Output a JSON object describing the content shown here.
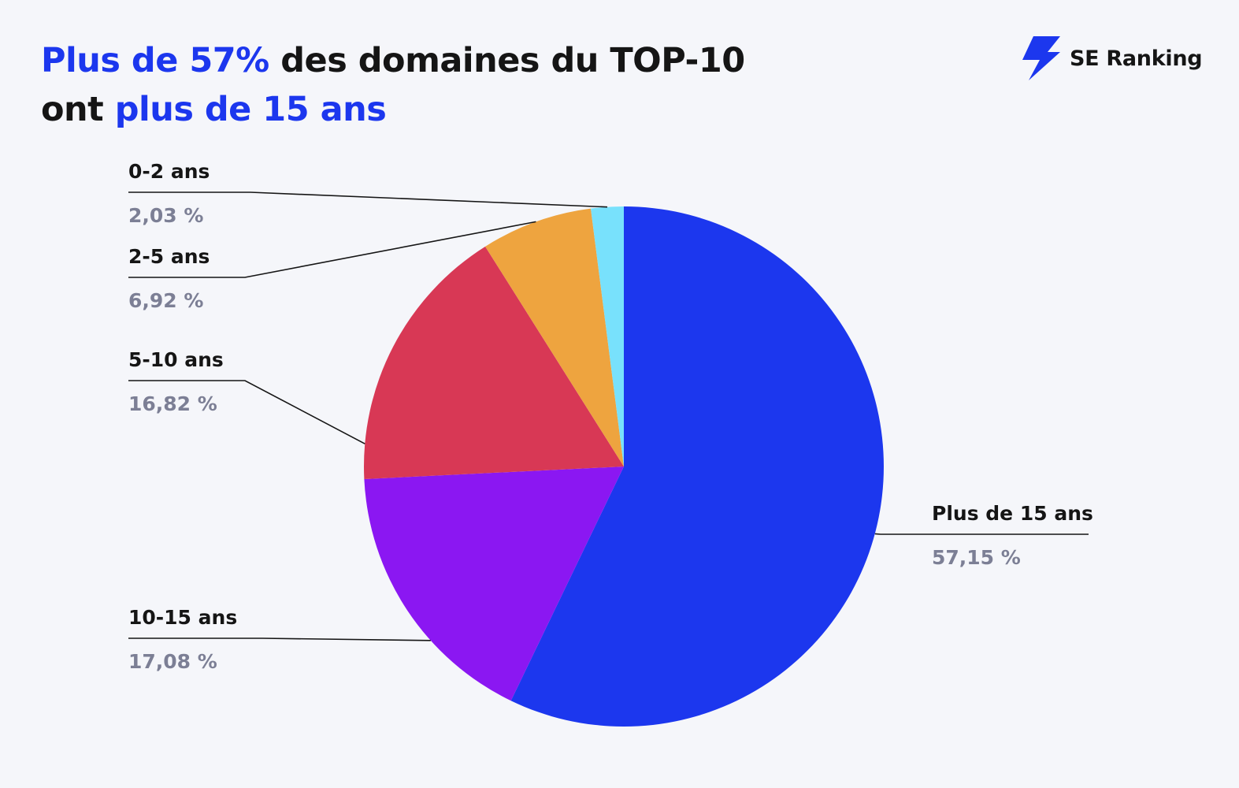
{
  "header": {
    "title_line1_highlight": "Plus de 57%",
    "title_line1_rest": " des domaines du TOP-10",
    "title_line2_start": "ont ",
    "title_line2_highlight": "plus de 15 ans"
  },
  "logo": {
    "text": "SE Ranking",
    "icon": "lightning-bolt-icon",
    "color": "#1c37ee"
  },
  "chart_data": {
    "type": "pie",
    "title": "",
    "start": "top",
    "direction": "clockwise",
    "slices": [
      {
        "label": "Plus de 15 ans",
        "value": 57.15,
        "value_label": "57,15 %",
        "color": "#1c37ee"
      },
      {
        "label": "10-15 ans",
        "value": 17.08,
        "value_label": "17,08 %",
        "color": "#8b17f2"
      },
      {
        "label": "5-10 ans",
        "value": 16.82,
        "value_label": "16,82 %",
        "color": "#d83855"
      },
      {
        "label": "2-5 ans",
        "value": 6.92,
        "value_label": "6,92 %",
        "color": "#eea43f"
      },
      {
        "label": "0-2 ans",
        "value": 2.03,
        "value_label": "2,03 %",
        "color": "#78e1fc"
      }
    ]
  }
}
